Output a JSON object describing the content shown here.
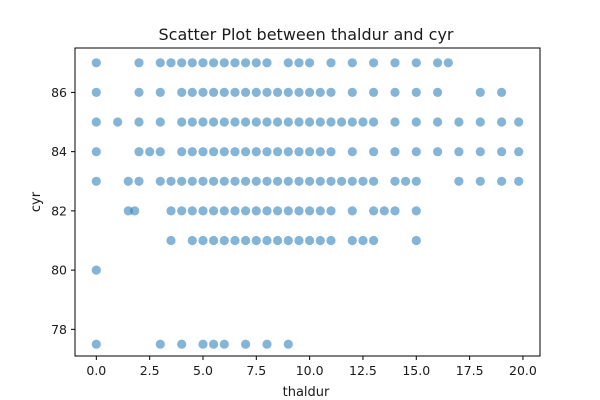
{
  "chart_data": {
    "type": "scatter",
    "title": "Scatter Plot between thaldur and cyr",
    "xlabel": "thaldur",
    "ylabel": "cyr",
    "xlim": [
      -1.0,
      20.8
    ],
    "ylim": [
      77.1,
      87.5
    ],
    "xticks": [
      0.0,
      2.5,
      5.0,
      7.5,
      10.0,
      12.5,
      15.0,
      17.5,
      20.0
    ],
    "xtick_labels": [
      "0.0",
      "2.5",
      "5.0",
      "7.5",
      "10.0",
      "12.5",
      "15.0",
      "17.5",
      "20.0"
    ],
    "yticks": [
      78,
      80,
      82,
      84,
      86
    ],
    "ytick_labels": [
      "78",
      "80",
      "82",
      "84",
      "86"
    ],
    "grid": false,
    "legend": "none",
    "marker_color": "#1f77b4",
    "marker_alpha": 0.55,
    "series": [
      {
        "points": [
          [
            0,
            87
          ],
          [
            2,
            87
          ],
          [
            3,
            87
          ],
          [
            3.5,
            87
          ],
          [
            4,
            87
          ],
          [
            4.5,
            87
          ],
          [
            5,
            87
          ],
          [
            5.5,
            87
          ],
          [
            6,
            87
          ],
          [
            6.5,
            87
          ],
          [
            7,
            87
          ],
          [
            7.5,
            87
          ],
          [
            8,
            87
          ],
          [
            9,
            87
          ],
          [
            9.5,
            87
          ],
          [
            10,
            87
          ],
          [
            11,
            87
          ],
          [
            12,
            87
          ],
          [
            13,
            87
          ],
          [
            14,
            87
          ],
          [
            15,
            87
          ],
          [
            16,
            87
          ],
          [
            16.5,
            87
          ],
          [
            0,
            86
          ],
          [
            2,
            86
          ],
          [
            3,
            86
          ],
          [
            4,
            86
          ],
          [
            4.5,
            86
          ],
          [
            5,
            86
          ],
          [
            5.5,
            86
          ],
          [
            6,
            86
          ],
          [
            6.5,
            86
          ],
          [
            7,
            86
          ],
          [
            7.5,
            86
          ],
          [
            8,
            86
          ],
          [
            8.5,
            86
          ],
          [
            9,
            86
          ],
          [
            9.5,
            86
          ],
          [
            10,
            86
          ],
          [
            10.5,
            86
          ],
          [
            11,
            86
          ],
          [
            12,
            86
          ],
          [
            13,
            86
          ],
          [
            14,
            86
          ],
          [
            15,
            86
          ],
          [
            16,
            86
          ],
          [
            18,
            86
          ],
          [
            19,
            86
          ],
          [
            0,
            85
          ],
          [
            1,
            85
          ],
          [
            2,
            85
          ],
          [
            3,
            85
          ],
          [
            4,
            85
          ],
          [
            4.5,
            85
          ],
          [
            5,
            85
          ],
          [
            5.5,
            85
          ],
          [
            6,
            85
          ],
          [
            6.5,
            85
          ],
          [
            7,
            85
          ],
          [
            7.5,
            85
          ],
          [
            8,
            85
          ],
          [
            8.5,
            85
          ],
          [
            9,
            85
          ],
          [
            9.5,
            85
          ],
          [
            10,
            85
          ],
          [
            10.5,
            85
          ],
          [
            11,
            85
          ],
          [
            11.5,
            85
          ],
          [
            12,
            85
          ],
          [
            12.5,
            85
          ],
          [
            13,
            85
          ],
          [
            14,
            85
          ],
          [
            15,
            85
          ],
          [
            16,
            85
          ],
          [
            17,
            85
          ],
          [
            18,
            85
          ],
          [
            19,
            85
          ],
          [
            19.8,
            85
          ],
          [
            0,
            84
          ],
          [
            2,
            84
          ],
          [
            2.5,
            84
          ],
          [
            3,
            84
          ],
          [
            4,
            84
          ],
          [
            4.5,
            84
          ],
          [
            5,
            84
          ],
          [
            5.5,
            84
          ],
          [
            6,
            84
          ],
          [
            6.5,
            84
          ],
          [
            7,
            84
          ],
          [
            7.5,
            84
          ],
          [
            8,
            84
          ],
          [
            8.5,
            84
          ],
          [
            9,
            84
          ],
          [
            9.5,
            84
          ],
          [
            10,
            84
          ],
          [
            10.5,
            84
          ],
          [
            11,
            84
          ],
          [
            12,
            84
          ],
          [
            13,
            84
          ],
          [
            14,
            84
          ],
          [
            15,
            84
          ],
          [
            16,
            84
          ],
          [
            17,
            84
          ],
          [
            18,
            84
          ],
          [
            19,
            84
          ],
          [
            19.8,
            84
          ],
          [
            0,
            83
          ],
          [
            1.5,
            83
          ],
          [
            2,
            83
          ],
          [
            3,
            83
          ],
          [
            3.5,
            83
          ],
          [
            4,
            83
          ],
          [
            4.5,
            83
          ],
          [
            5,
            83
          ],
          [
            5.5,
            83
          ],
          [
            6,
            83
          ],
          [
            6.5,
            83
          ],
          [
            7,
            83
          ],
          [
            7.5,
            83
          ],
          [
            8,
            83
          ],
          [
            8.5,
            83
          ],
          [
            9,
            83
          ],
          [
            9.5,
            83
          ],
          [
            10,
            83
          ],
          [
            10.5,
            83
          ],
          [
            11,
            83
          ],
          [
            11.5,
            83
          ],
          [
            12,
            83
          ],
          [
            12.5,
            83
          ],
          [
            13,
            83
          ],
          [
            14,
            83
          ],
          [
            14.5,
            83
          ],
          [
            15,
            83
          ],
          [
            17,
            83
          ],
          [
            18,
            83
          ],
          [
            19,
            83
          ],
          [
            19.8,
            83
          ],
          [
            1.5,
            82
          ],
          [
            1.8,
            82
          ],
          [
            3.5,
            82
          ],
          [
            4,
            82
          ],
          [
            4.5,
            82
          ],
          [
            5,
            82
          ],
          [
            5.5,
            82
          ],
          [
            6,
            82
          ],
          [
            6.5,
            82
          ],
          [
            7,
            82
          ],
          [
            7.5,
            82
          ],
          [
            8,
            82
          ],
          [
            8.5,
            82
          ],
          [
            9,
            82
          ],
          [
            9.5,
            82
          ],
          [
            10,
            82
          ],
          [
            10.5,
            82
          ],
          [
            11,
            82
          ],
          [
            12,
            82
          ],
          [
            13,
            82
          ],
          [
            13.5,
            82
          ],
          [
            14,
            82
          ],
          [
            15,
            82
          ],
          [
            3.5,
            81
          ],
          [
            4.5,
            81
          ],
          [
            5,
            81
          ],
          [
            5.5,
            81
          ],
          [
            6,
            81
          ],
          [
            6.5,
            81
          ],
          [
            7,
            81
          ],
          [
            7.5,
            81
          ],
          [
            8,
            81
          ],
          [
            8.5,
            81
          ],
          [
            9,
            81
          ],
          [
            9.5,
            81
          ],
          [
            10,
            81
          ],
          [
            10.5,
            81
          ],
          [
            11,
            81
          ],
          [
            12,
            81
          ],
          [
            12.5,
            81
          ],
          [
            13,
            81
          ],
          [
            15,
            81
          ],
          [
            0,
            80
          ],
          [
            0,
            77.5
          ],
          [
            3,
            77.5
          ],
          [
            4,
            77.5
          ],
          [
            5,
            77.5
          ],
          [
            5.5,
            77.5
          ],
          [
            6,
            77.5
          ],
          [
            7,
            77.5
          ],
          [
            8,
            77.5
          ],
          [
            9,
            77.5
          ]
        ]
      }
    ]
  }
}
